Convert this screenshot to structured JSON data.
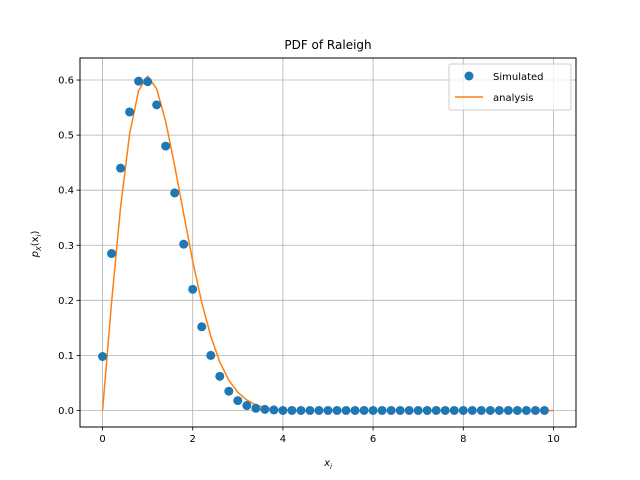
{
  "chart_data": {
    "type": "scatter",
    "title": "PDF of Raleigh",
    "xlabel": {
      "main": "x",
      "sub": "i"
    },
    "ylabel": {
      "main": "p",
      "sub1": "X",
      "mid": "(x",
      "sub2": "i",
      "end": ")"
    },
    "xlim": [
      -0.5,
      10.5
    ],
    "ylim": [
      -0.03,
      0.64
    ],
    "xticks": [
      0,
      2,
      4,
      6,
      8,
      10
    ],
    "yticks": [
      0.0,
      0.1,
      0.2,
      0.3,
      0.4,
      0.5,
      0.6
    ],
    "xtick_labels": [
      "0",
      "2",
      "4",
      "6",
      "8",
      "10"
    ],
    "ytick_labels": [
      "0.0",
      "0.1",
      "0.2",
      "0.3",
      "0.4",
      "0.5",
      "0.6"
    ],
    "grid": true,
    "legend_position": "top-right",
    "series": [
      {
        "name": "Simulated",
        "kind": "markers",
        "color": "#1f77b4",
        "x": [
          0.0,
          0.2,
          0.4,
          0.6,
          0.8,
          1.0,
          1.2,
          1.4,
          1.6,
          1.8,
          2.0,
          2.2,
          2.4,
          2.6,
          2.8,
          3.0,
          3.2,
          3.4,
          3.6,
          3.8,
          4.0,
          4.2,
          4.4,
          4.6,
          4.8,
          5.0,
          5.2,
          5.4,
          5.6,
          5.8,
          6.0,
          6.2,
          6.4,
          6.6,
          6.8,
          7.0,
          7.2,
          7.4,
          7.6,
          7.8,
          8.0,
          8.2,
          8.4,
          8.6,
          8.8,
          9.0,
          9.2,
          9.4,
          9.6,
          9.8
        ],
        "y": [
          0.098,
          0.285,
          0.44,
          0.542,
          0.598,
          0.597,
          0.555,
          0.48,
          0.395,
          0.302,
          0.22,
          0.152,
          0.1,
          0.062,
          0.035,
          0.018,
          0.009,
          0.004,
          0.002,
          0.001,
          0.0,
          0.0,
          0.0,
          0.0,
          0.0,
          0.0,
          0.0,
          0.0,
          0.0,
          0.0,
          0.0,
          0.0,
          0.0,
          0.0,
          0.0,
          0.0,
          0.0,
          0.0,
          0.0,
          0.0,
          0.0,
          0.0,
          0.0,
          0.0,
          0.0,
          0.0,
          0.0,
          0.0,
          0.0,
          0.0
        ]
      },
      {
        "name": "analysis",
        "kind": "line",
        "color": "#ff7f0e",
        "x": [
          0.0,
          0.2,
          0.4,
          0.6,
          0.8,
          1.0,
          1.2,
          1.4,
          1.6,
          1.8,
          2.0,
          2.2,
          2.4,
          2.6,
          2.8,
          3.0,
          3.2,
          3.4,
          3.6,
          3.8,
          4.0,
          4.5,
          5.0,
          6.0,
          7.0,
          8.0,
          9.0,
          10.0
        ],
        "y": [
          0.0,
          0.196,
          0.369,
          0.502,
          0.581,
          0.607,
          0.584,
          0.525,
          0.444,
          0.357,
          0.271,
          0.196,
          0.135,
          0.088,
          0.055,
          0.033,
          0.019,
          0.01,
          0.005,
          0.003,
          0.001,
          0.0,
          0.0,
          0.0,
          0.0,
          0.0,
          0.0,
          0.0
        ]
      }
    ]
  }
}
